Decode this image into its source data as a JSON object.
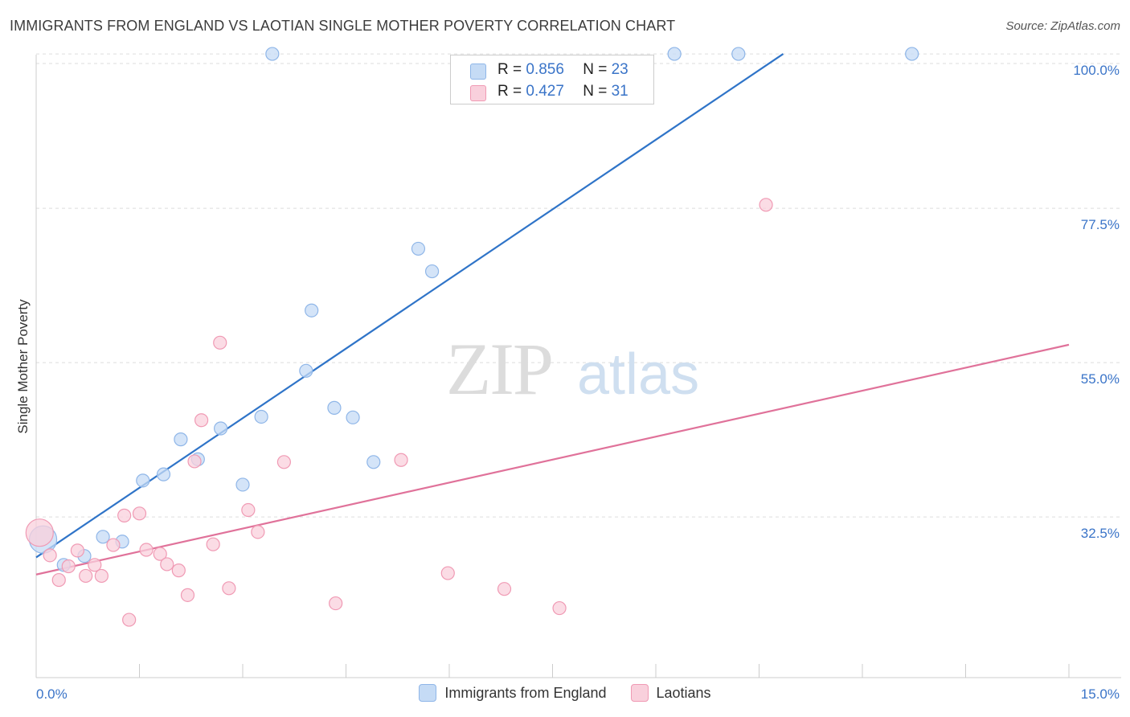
{
  "title": "IMMIGRANTS FROM ENGLAND VS LAOTIAN SINGLE MOTHER POVERTY CORRELATION CHART",
  "source": "Source: ZipAtlas.com",
  "watermark": {
    "zip": "ZIP",
    "atlas": "atlas"
  },
  "colors": {
    "blue_fill": "#c5dbf5",
    "blue_stroke": "#8fb6e8",
    "blue_line": "#2f74c8",
    "pink_fill": "#f9d0dc",
    "pink_stroke": "#f09ab4",
    "pink_line": "#e0729a",
    "axis_label": "#3a74c8",
    "grid": "#dddddd"
  },
  "stats": [
    {
      "r_label": "R = ",
      "r_value": "0.856",
      "n_label": "N = ",
      "n_value": "23"
    },
    {
      "r_label": "R = ",
      "r_value": "0.427",
      "n_label": "N = ",
      "n_value": "31"
    }
  ],
  "chart_data": {
    "type": "scatter",
    "title": "IMMIGRANTS FROM ENGLAND VS LAOTIAN SINGLE MOTHER POVERTY CORRELATION CHART",
    "xlabel": "",
    "ylabel": "Single Mother Poverty",
    "xlim": [
      0,
      15
    ],
    "ylim": [
      12,
      102
    ],
    "x_tick_labels": [
      {
        "value": 0,
        "label": "0.0%"
      },
      {
        "value": 15,
        "label": "15.0%"
      }
    ],
    "y_ticks": [
      {
        "value": 32.5,
        "label": "32.5%"
      },
      {
        "value": 55.0,
        "label": "55.0%"
      },
      {
        "value": 77.5,
        "label": "77.5%"
      },
      {
        "value": 100.0,
        "label": "100.0%"
      }
    ],
    "legend_position": "bottom",
    "series": [
      {
        "name": "Immigrants from England",
        "color": "blue",
        "trend": {
          "x": [
            0,
            10.85
          ],
          "y": [
            26.6,
            100
          ]
        },
        "points": [
          {
            "x": 0.1,
            "y": 29.2,
            "size": "large"
          },
          {
            "x": 0.4,
            "y": 25.5
          },
          {
            "x": 0.7,
            "y": 26.8
          },
          {
            "x": 0.97,
            "y": 29.6
          },
          {
            "x": 1.25,
            "y": 28.9
          },
          {
            "x": 1.55,
            "y": 37.8
          },
          {
            "x": 1.85,
            "y": 38.7
          },
          {
            "x": 2.1,
            "y": 43.8
          },
          {
            "x": 2.35,
            "y": 40.9
          },
          {
            "x": 2.68,
            "y": 45.4
          },
          {
            "x": 3.0,
            "y": 37.2
          },
          {
            "x": 3.27,
            "y": 47.1
          },
          {
            "x": 3.43,
            "y": 100
          },
          {
            "x": 3.92,
            "y": 53.8
          },
          {
            "x": 4.0,
            "y": 62.6
          },
          {
            "x": 4.33,
            "y": 48.4
          },
          {
            "x": 4.6,
            "y": 47.0
          },
          {
            "x": 4.9,
            "y": 40.5
          },
          {
            "x": 5.55,
            "y": 71.6
          },
          {
            "x": 5.75,
            "y": 68.3
          },
          {
            "x": 9.27,
            "y": 100
          },
          {
            "x": 10.2,
            "y": 100
          },
          {
            "x": 12.72,
            "y": 100
          }
        ]
      },
      {
        "name": "Laotians",
        "color": "pink",
        "trend": {
          "x": [
            0,
            15
          ],
          "y": [
            24.1,
            57.6
          ]
        },
        "points": [
          {
            "x": 0.05,
            "y": 30.2,
            "size": "large"
          },
          {
            "x": 0.2,
            "y": 26.9
          },
          {
            "x": 0.33,
            "y": 23.3
          },
          {
            "x": 0.47,
            "y": 25.3
          },
          {
            "x": 0.6,
            "y": 27.6
          },
          {
            "x": 0.72,
            "y": 23.9
          },
          {
            "x": 0.85,
            "y": 25.5
          },
          {
            "x": 0.95,
            "y": 23.9
          },
          {
            "x": 1.12,
            "y": 28.4
          },
          {
            "x": 1.28,
            "y": 32.7
          },
          {
            "x": 1.35,
            "y": 17.5
          },
          {
            "x": 1.5,
            "y": 33.0
          },
          {
            "x": 1.6,
            "y": 27.7
          },
          {
            "x": 1.8,
            "y": 27.1
          },
          {
            "x": 1.9,
            "y": 25.6
          },
          {
            "x": 2.07,
            "y": 24.7
          },
          {
            "x": 2.2,
            "y": 21.1
          },
          {
            "x": 2.3,
            "y": 40.6
          },
          {
            "x": 2.4,
            "y": 46.6
          },
          {
            "x": 2.57,
            "y": 28.5
          },
          {
            "x": 2.67,
            "y": 57.9
          },
          {
            "x": 2.8,
            "y": 22.1
          },
          {
            "x": 3.08,
            "y": 33.5
          },
          {
            "x": 3.22,
            "y": 30.3
          },
          {
            "x": 3.6,
            "y": 40.5
          },
          {
            "x": 4.35,
            "y": 19.9
          },
          {
            "x": 5.3,
            "y": 40.8
          },
          {
            "x": 5.98,
            "y": 24.3
          },
          {
            "x": 6.8,
            "y": 22.0
          },
          {
            "x": 7.6,
            "y": 19.2
          },
          {
            "x": 10.6,
            "y": 78.0
          }
        ]
      }
    ]
  }
}
